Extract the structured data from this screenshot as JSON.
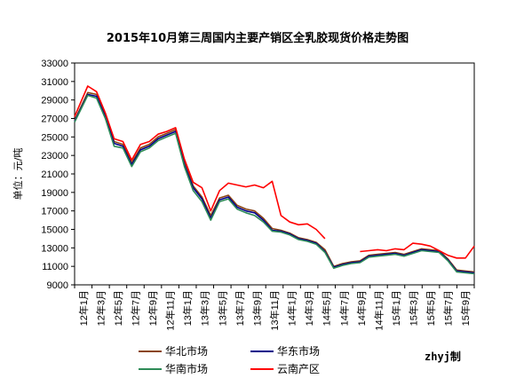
{
  "chart_data": {
    "type": "line",
    "title": "2015年10月第三周国内主要产销区全乳胶现货价格走势图",
    "ylabel": "单位：元/吨",
    "xlabel": "",
    "ylim": [
      9000,
      33000
    ],
    "yticks": [
      "33000",
      "31000",
      "29000",
      "27000",
      "25000",
      "23000",
      "21000",
      "19000",
      "17000",
      "15000",
      "13000",
      "11000",
      "9000"
    ],
    "grid": false,
    "legend_position": "bottom",
    "credit": "zhyj制",
    "x_month_index_range": [
      0,
      45.5
    ],
    "categories": [
      "12年1月",
      "12年3月",
      "12年5月",
      "12年7月",
      "12年9月",
      "12年11月",
      "13年1月",
      "13年3月",
      "13年5月",
      "13年7月",
      "13年9月",
      "13年11月",
      "14年1月",
      "14年3月",
      "14年5月",
      "14年7月",
      "14年9月",
      "14年11月",
      "15年1月",
      "15年3月",
      "15年5月",
      "15年7月",
      "15年9月"
    ],
    "x": [
      0,
      1.5,
      2.5,
      3.5,
      4.5,
      5.5,
      6.5,
      7.5,
      8.5,
      9.5,
      10.5,
      11.5,
      12.5,
      13.5,
      14.5,
      15.5,
      16.5,
      17.5,
      18.5,
      19.5,
      20.5,
      21.5,
      22.5,
      23.5,
      24.5,
      25.5,
      26.5,
      27.5,
      28.5,
      29.5,
      30.5,
      31.5,
      32.5,
      33.5,
      34.5,
      35.5,
      36.5,
      37.5,
      38.5,
      39.5,
      40.5,
      41.5,
      42.5,
      43.5,
      44.5,
      45.5
    ],
    "series": [
      {
        "name": "华北市场",
        "color": "#8b4513",
        "values": [
          26800,
          29800,
          29600,
          27400,
          24500,
          24200,
          22200,
          23800,
          24200,
          25000,
          25400,
          25800,
          22300,
          19700,
          18500,
          16500,
          18400,
          18700,
          17600,
          17200,
          17000,
          16200,
          15100,
          14900,
          14600,
          14100,
          13900,
          13600,
          12800,
          11000,
          11300,
          11500,
          11600,
          12200,
          12300,
          12400,
          12500,
          12300,
          12600,
          12900,
          12800,
          12700,
          11800,
          10600,
          10500,
          10400
        ]
      },
      {
        "name": "华东市场",
        "color": "#00008b",
        "values": [
          26700,
          29600,
          29400,
          27200,
          24300,
          24000,
          22000,
          23600,
          24000,
          24800,
          25200,
          25600,
          22000,
          19500,
          18300,
          16200,
          18200,
          18500,
          17400,
          17000,
          16800,
          16000,
          14900,
          14800,
          14500,
          14000,
          13800,
          13500,
          12600,
          10900,
          11200,
          11400,
          11500,
          12100,
          12200,
          12300,
          12400,
          12200,
          12500,
          12800,
          12700,
          12600,
          11700,
          10500,
          10400,
          10300
        ]
      },
      {
        "name": "华南市场",
        "color": "#2e8b57",
        "values": [
          26600,
          29500,
          29200,
          27000,
          24000,
          23800,
          21800,
          23400,
          23800,
          24600,
          25000,
          25400,
          21800,
          19200,
          18000,
          16000,
          18000,
          18300,
          17200,
          16800,
          16500,
          15800,
          14800,
          14700,
          14400,
          13900,
          13700,
          13400,
          12500,
          10800,
          11100,
          11300,
          11400,
          12000,
          12100,
          12200,
          12300,
          12100,
          12400,
          12700,
          12600,
          12500,
          11600,
          10400,
          10300,
          10200
        ]
      },
      {
        "name": "云南产区",
        "color": "#ff0000",
        "values": [
          27200,
          30500,
          29900,
          27600,
          24800,
          24500,
          22500,
          24200,
          24500,
          25300,
          25600,
          26000,
          22600,
          20100,
          19500,
          17000,
          19200,
          20000,
          19800,
          19600,
          19800,
          19500,
          20200,
          16500,
          15800,
          15500,
          15600,
          15000,
          14000,
          null,
          12400,
          null,
          12600,
          12700,
          12800,
          12700,
          12900,
          12800,
          13500,
          13400,
          13200,
          12700,
          12200,
          11900,
          11900,
          13200
        ]
      }
    ]
  }
}
